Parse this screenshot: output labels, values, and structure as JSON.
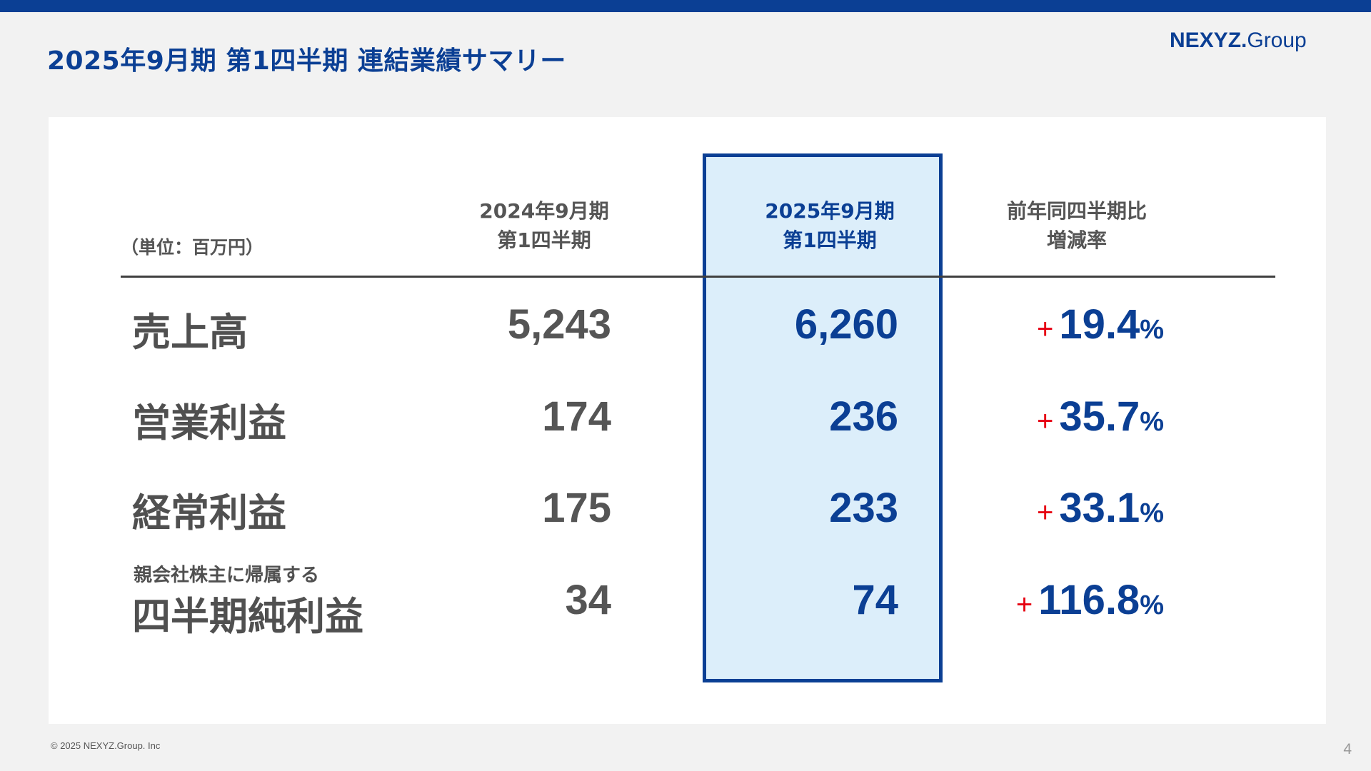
{
  "header": {
    "title": "2025年9月期 第1四半期 連結業績サマリー",
    "logo_main": "NEXYZ.",
    "logo_sub": "Group"
  },
  "table": {
    "unit": "（単位：百万円）",
    "columns": [
      {
        "line1": "2024年9月期",
        "line2": "第1四半期"
      },
      {
        "line1": "2025年9月期",
        "line2": "第1四半期"
      },
      {
        "line1": "前年同四半期比",
        "line2": "増減率"
      }
    ],
    "rows": [
      {
        "label": "売上高",
        "sublabel": "",
        "prev": "5,243",
        "cur": "6,260",
        "sign": "+",
        "change": "19.4",
        "pct": "%"
      },
      {
        "label": "営業利益",
        "sublabel": "",
        "prev": "174",
        "cur": "236",
        "sign": "+",
        "change": "35.7",
        "pct": "%"
      },
      {
        "label": "経常利益",
        "sublabel": "",
        "prev": "175",
        "cur": "233",
        "sign": "+",
        "change": "33.1",
        "pct": "%"
      },
      {
        "label": "四半期純利益",
        "sublabel": "親会社株主に帰属する",
        "prev": "34",
        "cur": "74",
        "sign": "+",
        "change": "116.8",
        "pct": "%"
      }
    ]
  },
  "footer": {
    "copyright": "© 2025 NEXYZ.Group. Inc",
    "page": "4"
  },
  "colors": {
    "brand": "#0b3f94",
    "highlight": "#dceefa",
    "plus": "#e60012"
  }
}
